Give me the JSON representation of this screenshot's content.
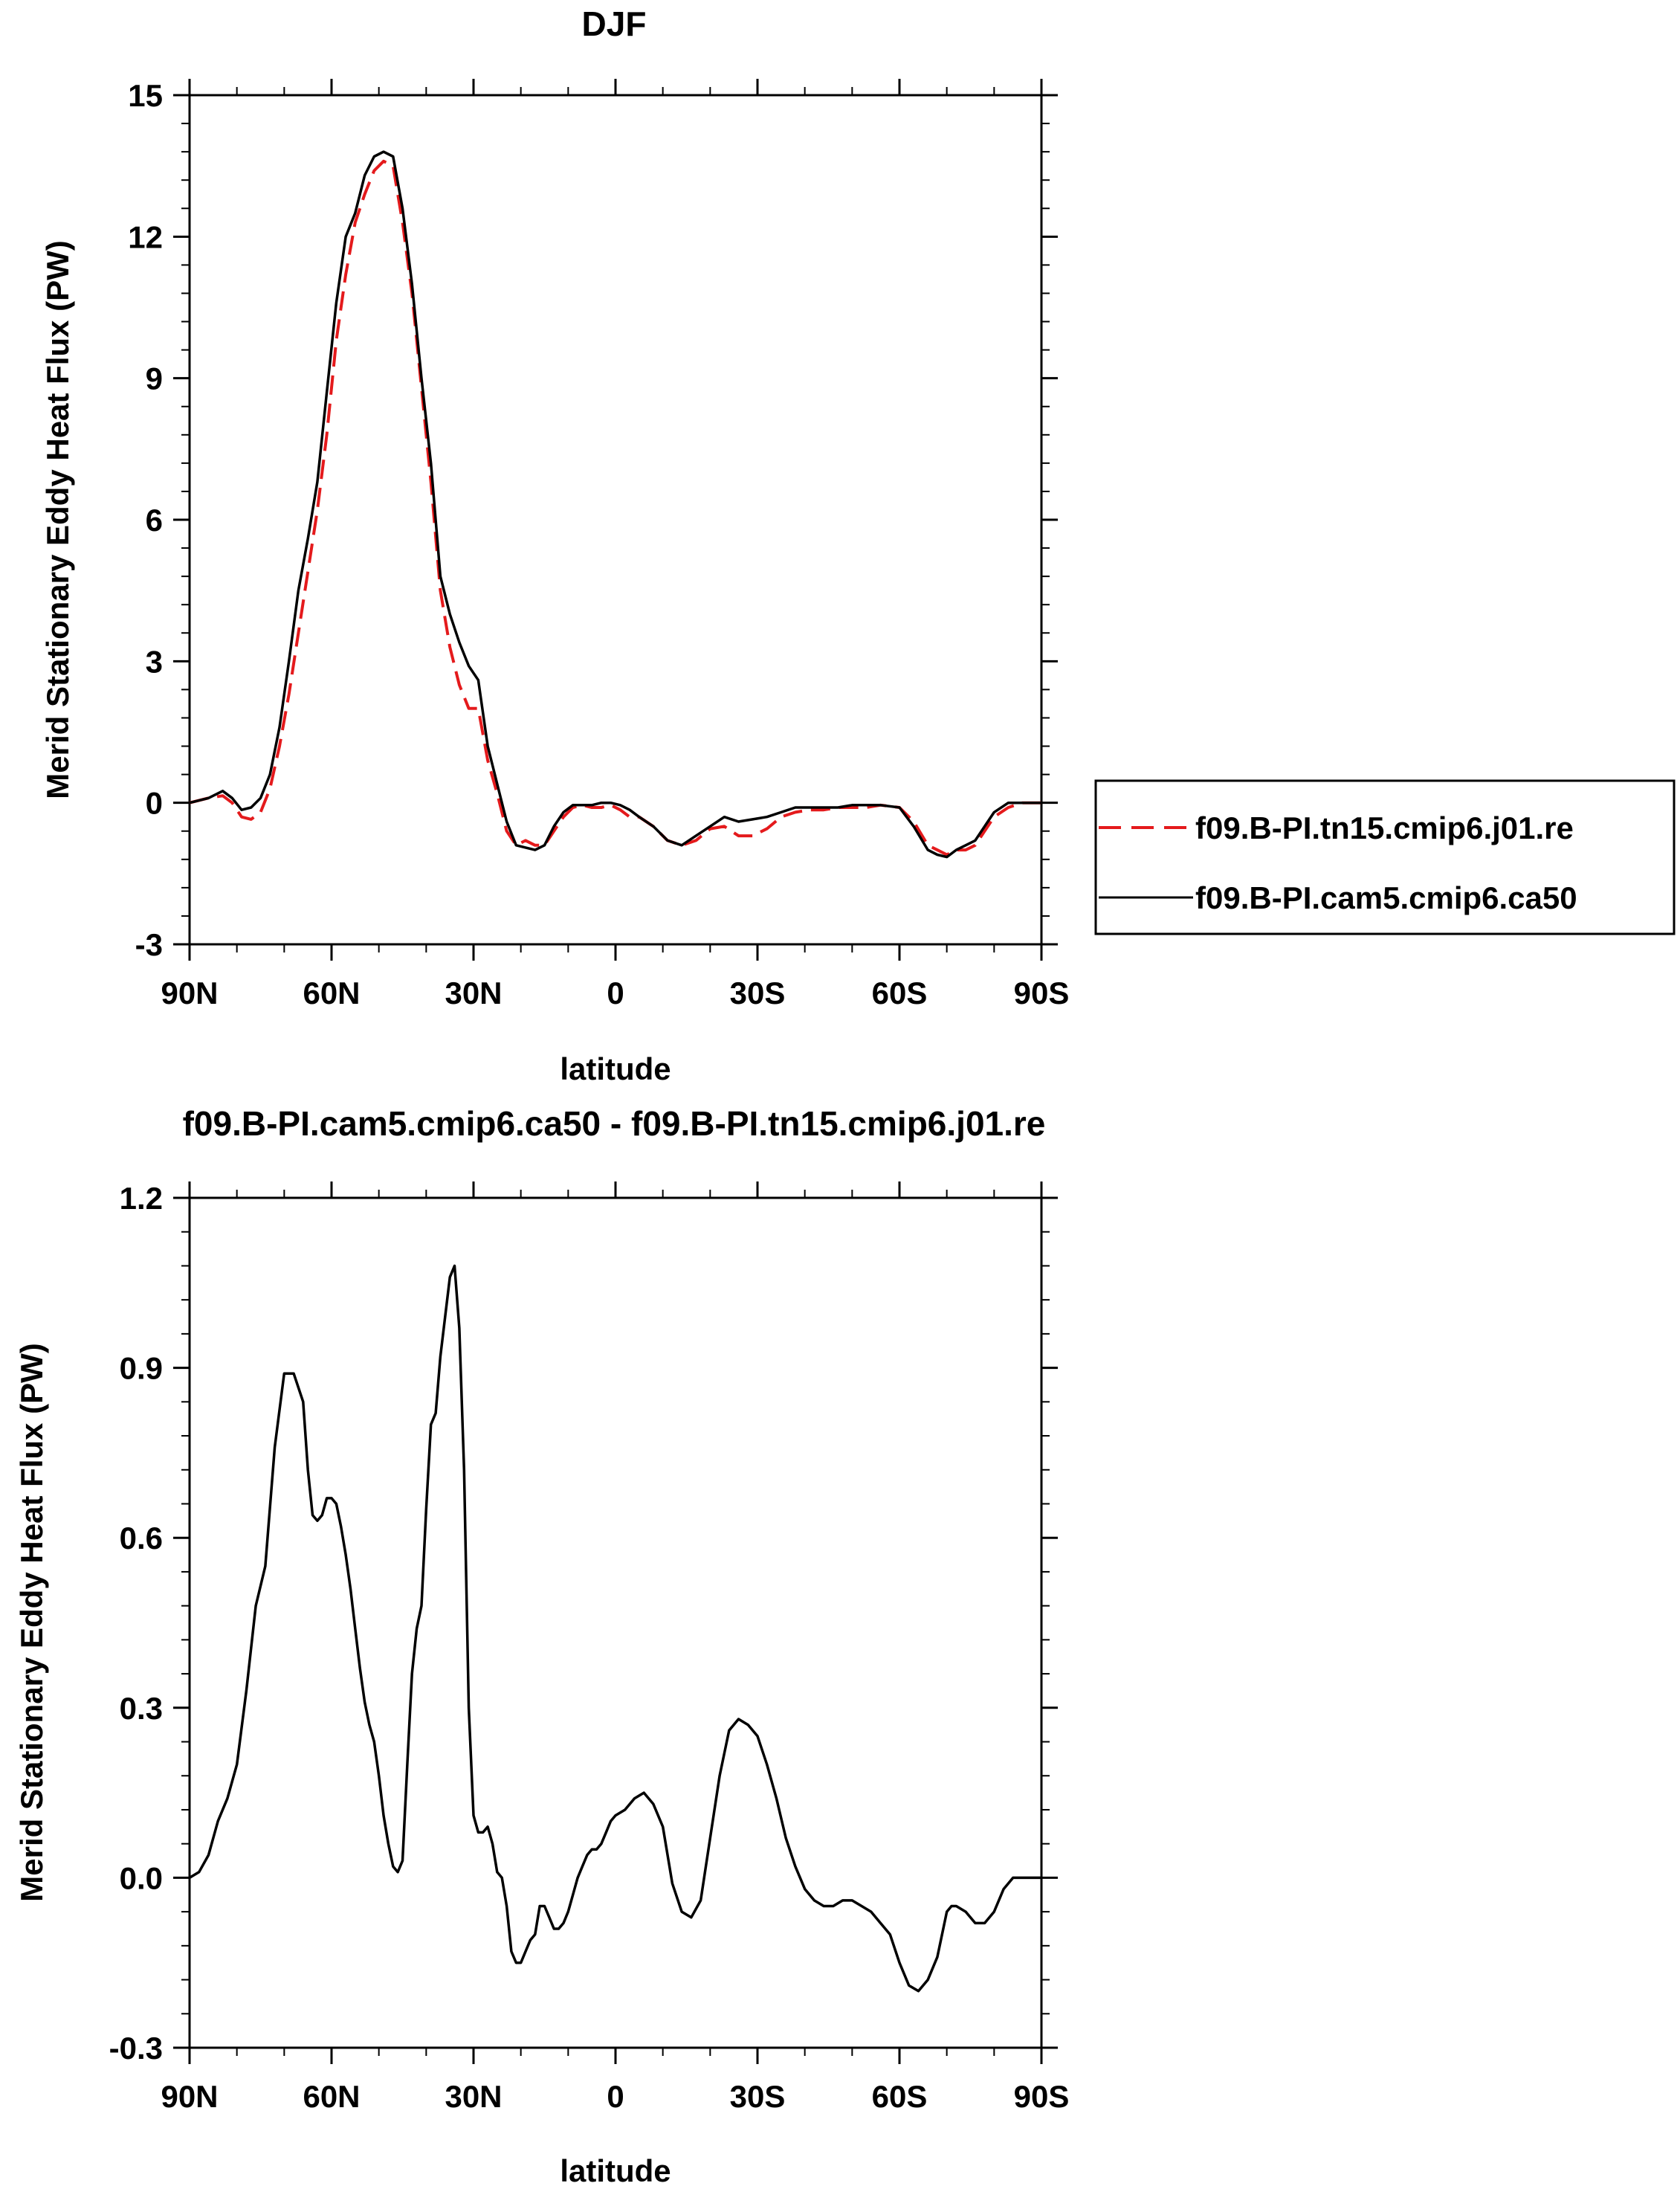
{
  "chart_data": [
    {
      "type": "line",
      "title": "DJF",
      "xlabel": "latitude",
      "ylabel": "Merid Stationary Eddy Heat Flux (PW)",
      "xlim": [
        90,
        -90
      ],
      "ylim": [
        -3,
        15
      ],
      "x_ticks": [
        90,
        60,
        30,
        0,
        -30,
        -60,
        -90
      ],
      "x_tick_labels": [
        "90N",
        "60N",
        "30N",
        "0",
        "30S",
        "60S",
        "90S"
      ],
      "y_ticks": [
        -3,
        0,
        3,
        6,
        9,
        12,
        15
      ],
      "y_tick_labels": [
        "-3",
        "0",
        "3",
        "6",
        "9",
        "12",
        "15"
      ],
      "legend": {
        "position": "right-outside",
        "entries": [
          "f09.B-PI.tn15.cmip6.j01.re",
          "f09.B-PI.cam5.cmip6.ca50"
        ]
      },
      "series": [
        {
          "name": "f09.B-PI.tn15.cmip6.j01.re",
          "color": "#e41a1c",
          "dash": "dashed",
          "x": [
            90,
            86,
            83,
            81,
            79,
            77,
            75,
            73,
            71,
            69,
            67,
            65,
            63,
            61,
            59,
            57,
            55,
            53,
            51,
            49,
            47,
            45,
            43,
            41,
            39,
            37,
            35,
            33,
            31,
            29,
            27,
            25,
            23,
            21,
            19,
            17,
            15,
            13,
            11,
            9,
            7,
            5,
            3,
            1,
            -1,
            -3,
            -5,
            -8,
            -11,
            -14,
            -17,
            -20,
            -23,
            -26,
            -29,
            -32,
            -35,
            -38,
            -41,
            -44,
            -47,
            -50,
            -53,
            -56,
            -60,
            -63,
            -66,
            -68,
            -70,
            -72,
            -74,
            -76,
            -78,
            -80,
            -83,
            -86,
            -90
          ],
          "y": [
            0.0,
            0.1,
            0.15,
            0.0,
            -0.3,
            -0.35,
            -0.2,
            0.3,
            1.2,
            2.3,
            3.6,
            4.9,
            6.2,
            7.8,
            9.8,
            11.2,
            12.3,
            12.9,
            13.4,
            13.6,
            13.5,
            12.3,
            10.8,
            8.8,
            6.8,
            4.5,
            3.3,
            2.5,
            2.0,
            2.0,
            0.9,
            0.2,
            -0.6,
            -0.9,
            -0.8,
            -0.9,
            -0.9,
            -0.6,
            -0.3,
            -0.1,
            -0.05,
            -0.1,
            -0.1,
            -0.05,
            -0.15,
            -0.3,
            -0.3,
            -0.5,
            -0.8,
            -0.9,
            -0.8,
            -0.55,
            -0.5,
            -0.7,
            -0.7,
            -0.55,
            -0.3,
            -0.2,
            -0.15,
            -0.15,
            -0.1,
            -0.1,
            -0.1,
            -0.05,
            -0.1,
            -0.4,
            -0.9,
            -1.0,
            -1.1,
            -1.0,
            -1.0,
            -0.9,
            -0.6,
            -0.3,
            -0.1,
            0.0,
            0.0
          ]
        },
        {
          "name": "f09.B-PI.cam5.cmip6.ca50",
          "color": "#000000",
          "dash": "solid",
          "x": [
            90,
            86,
            83,
            81,
            79,
            77,
            75,
            73,
            71,
            69,
            67,
            65,
            63,
            61,
            59,
            57,
            55,
            53,
            51,
            49,
            47,
            45,
            43,
            41,
            39,
            37,
            35,
            33,
            31,
            29,
            27,
            25,
            23,
            21,
            19,
            17,
            15,
            13,
            11,
            9,
            7,
            5,
            3,
            1,
            -1,
            -3,
            -5,
            -8,
            -11,
            -14,
            -17,
            -20,
            -23,
            -26,
            -29,
            -32,
            -35,
            -38,
            -41,
            -44,
            -47,
            -50,
            -53,
            -56,
            -60,
            -63,
            -66,
            -68,
            -70,
            -72,
            -74,
            -76,
            -78,
            -80,
            -83,
            -86,
            -90
          ],
          "y": [
            0.0,
            0.1,
            0.25,
            0.1,
            -0.15,
            -0.1,
            0.1,
            0.6,
            1.6,
            3.0,
            4.5,
            5.6,
            6.8,
            8.7,
            10.6,
            12.0,
            12.5,
            13.3,
            13.7,
            13.8,
            13.7,
            12.6,
            11.0,
            9.0,
            7.2,
            4.8,
            4.0,
            3.4,
            2.9,
            2.6,
            1.2,
            0.4,
            -0.4,
            -0.9,
            -0.95,
            -1.0,
            -0.9,
            -0.5,
            -0.2,
            -0.05,
            -0.05,
            -0.05,
            0.0,
            0.0,
            -0.05,
            -0.15,
            -0.3,
            -0.5,
            -0.8,
            -0.9,
            -0.7,
            -0.5,
            -0.3,
            -0.4,
            -0.35,
            -0.3,
            -0.2,
            -0.1,
            -0.1,
            -0.1,
            -0.1,
            -0.05,
            -0.05,
            -0.05,
            -0.1,
            -0.5,
            -1.0,
            -1.1,
            -1.15,
            -1.0,
            -0.9,
            -0.8,
            -0.5,
            -0.2,
            0.0,
            0.0,
            0.0
          ]
        }
      ]
    },
    {
      "type": "line",
      "title": "f09.B-PI.cam5.cmip6.ca50 - f09.B-PI.tn15.cmip6.j01.re",
      "xlabel": "latitude",
      "ylabel": "Merid Stationary Eddy Heat Flux (PW)",
      "xlim": [
        90,
        -90
      ],
      "ylim": [
        -0.3,
        1.2
      ],
      "x_ticks": [
        90,
        60,
        30,
        0,
        -30,
        -60,
        -90
      ],
      "x_tick_labels": [
        "90N",
        "60N",
        "30N",
        "0",
        "30S",
        "60S",
        "90S"
      ],
      "y_ticks": [
        -0.3,
        0.0,
        0.3,
        0.6,
        0.9,
        1.2
      ],
      "y_tick_labels": [
        "-0.3",
        "0.0",
        "0.3",
        "0.6",
        "0.9",
        "1.2"
      ],
      "series": [
        {
          "color": "#000000",
          "dash": "solid",
          "x": [
            90,
            88,
            86,
            84,
            82,
            80,
            78,
            76,
            74,
            72,
            70,
            68,
            66,
            65,
            64,
            63,
            62,
            61,
            60,
            59,
            58,
            57,
            56,
            55,
            54,
            53,
            52,
            51,
            50,
            49,
            48,
            47,
            46,
            45,
            44,
            43,
            42,
            41,
            40,
            39,
            38,
            37,
            36,
            35,
            34,
            33,
            32,
            31,
            30,
            29,
            28,
            27,
            26,
            25,
            24,
            23,
            22,
            21,
            20,
            19,
            18,
            17,
            16,
            15,
            14,
            13,
            12,
            11,
            10,
            9,
            8,
            7,
            6,
            5,
            4,
            3,
            2,
            1,
            0,
            -2,
            -4,
            -6,
            -8,
            -10,
            -12,
            -14,
            -16,
            -18,
            -20,
            -22,
            -24,
            -26,
            -28,
            -30,
            -32,
            -34,
            -36,
            -38,
            -40,
            -42,
            -44,
            -46,
            -48,
            -50,
            -52,
            -54,
            -56,
            -58,
            -60,
            -62,
            -64,
            -66,
            -68,
            -69,
            -70,
            -71,
            -72,
            -74,
            -76,
            -78,
            -80,
            -82,
            -84,
            -86,
            -88,
            -90
          ],
          "y": [
            0.0,
            0.01,
            0.04,
            0.1,
            0.14,
            0.2,
            0.33,
            0.48,
            0.55,
            0.76,
            0.89,
            0.89,
            0.84,
            0.72,
            0.64,
            0.63,
            0.64,
            0.67,
            0.67,
            0.66,
            0.62,
            0.57,
            0.51,
            0.44,
            0.37,
            0.31,
            0.27,
            0.24,
            0.18,
            0.11,
            0.06,
            0.02,
            0.01,
            0.03,
            0.2,
            0.36,
            0.44,
            0.48,
            0.65,
            0.8,
            0.82,
            0.92,
            0.99,
            1.06,
            1.08,
            0.97,
            0.72,
            0.3,
            0.11,
            0.08,
            0.08,
            0.09,
            0.06,
            0.01,
            0.0,
            -0.05,
            -0.13,
            -0.15,
            -0.15,
            -0.13,
            -0.11,
            -0.1,
            -0.05,
            -0.05,
            -0.07,
            -0.09,
            -0.09,
            -0.08,
            -0.06,
            -0.03,
            0.0,
            0.02,
            0.04,
            0.05,
            0.05,
            0.06,
            0.08,
            0.1,
            0.11,
            0.12,
            0.14,
            0.15,
            0.13,
            0.09,
            -0.01,
            -0.06,
            -0.07,
            -0.04,
            0.07,
            0.18,
            0.26,
            0.28,
            0.27,
            0.25,
            0.2,
            0.14,
            0.07,
            0.02,
            -0.02,
            -0.04,
            -0.05,
            -0.05,
            -0.04,
            -0.04,
            -0.05,
            -0.06,
            -0.08,
            -0.1,
            -0.15,
            -0.19,
            -0.2,
            -0.18,
            -0.14,
            -0.1,
            -0.06,
            -0.05,
            -0.05,
            -0.06,
            -0.08,
            -0.08,
            -0.06,
            -0.02,
            0.0,
            0.0,
            0.0,
            0.0
          ]
        }
      ]
    }
  ]
}
